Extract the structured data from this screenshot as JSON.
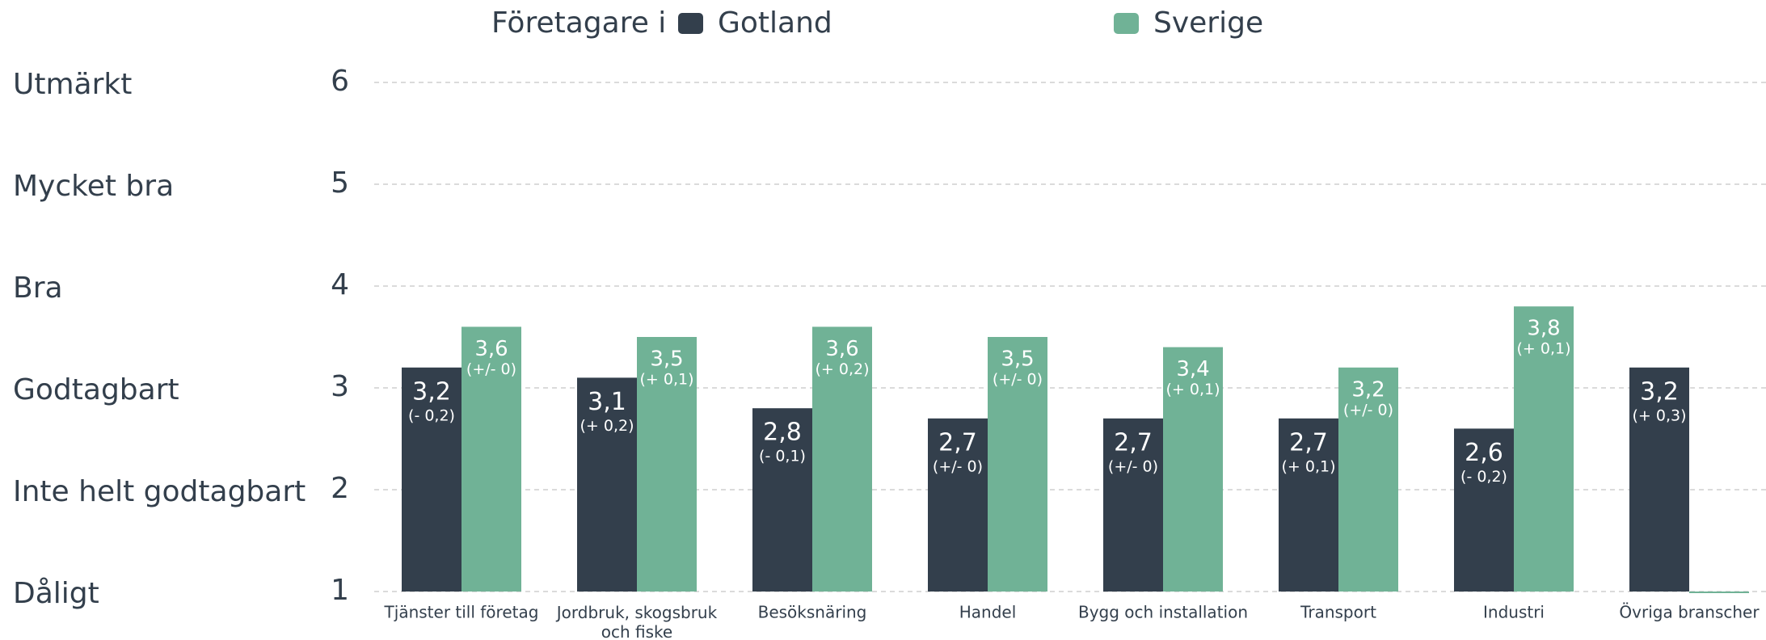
{
  "chart_data": {
    "type": "bar",
    "legend_title": "Företagare i",
    "categories": [
      "Tjänster till företag",
      "Jordbruk, skogsbruk och fiske",
      "Besöksnäring",
      "Handel",
      "Bygg och installation",
      "Transport",
      "Industri",
      "Övriga branscher"
    ],
    "series": [
      {
        "name": "Gotland",
        "color": "#333f4c",
        "values": [
          3.2,
          3.1,
          2.8,
          2.7,
          2.7,
          2.7,
          2.6,
          3.2
        ],
        "value_labels": [
          "3,2",
          "3,1",
          "2,8",
          "2,7",
          "2,7",
          "2,7",
          "2,6",
          "3,2"
        ],
        "changes": [
          "(- 0,2)",
          "(+ 0,2)",
          "(- 0,1)",
          "(+/- 0)",
          "(+/- 0)",
          "(+ 0,1)",
          "(- 0,2)",
          "(+ 0,3)"
        ]
      },
      {
        "name": "Sverige",
        "color": "#70b296",
        "values": [
          3.6,
          3.5,
          3.6,
          3.5,
          3.4,
          3.2,
          3.8,
          1.0
        ],
        "value_labels": [
          "3,6",
          "3,5",
          "3,6",
          "3,5",
          "3,4",
          "3,2",
          "3,8",
          null
        ],
        "changes": [
          "(+/- 0)",
          "(+ 0,1)",
          "(+ 0,2)",
          "(+/- 0)",
          "(+ 0,1)",
          "(+/- 0)",
          "(+ 0,1)",
          null
        ]
      }
    ],
    "ylim": [
      1,
      6
    ],
    "yticks": [
      1,
      2,
      3,
      4,
      5,
      6
    ],
    "ytick_names": [
      "Dåligt",
      "Inte helt godtagbart",
      "Godtagbart",
      "Bra",
      "Mycket bra",
      "Utmärkt"
    ],
    "grid": true
  }
}
